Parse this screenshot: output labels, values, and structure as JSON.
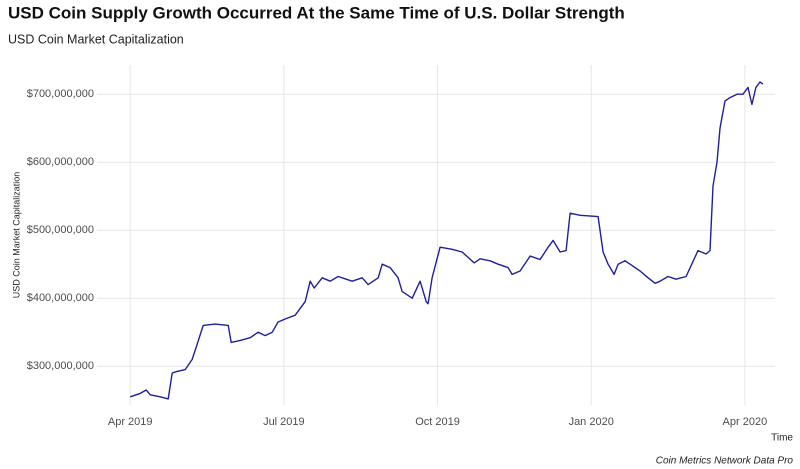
{
  "chart_data": {
    "type": "line",
    "title": "USD Coin Supply Growth Occurred At the Same Time of U.S. Dollar Strength",
    "subtitle": "USD Coin Market Capitalization",
    "y_label": "USD Coin Market Capitalization",
    "x_label": "Time",
    "caption": "Coin Metrics Network Data Pro",
    "grid": true,
    "xlim": [
      2019.196,
      2020.299
    ],
    "xticks": [
      {
        "value": 2019.25,
        "label": "Apr 2019"
      },
      {
        "value": 2019.5,
        "label": "Jul 2019"
      },
      {
        "value": 2019.75,
        "label": "Oct 2019"
      },
      {
        "value": 2020.0,
        "label": "Jan 2020"
      },
      {
        "value": 2020.25,
        "label": "Apr 2020"
      }
    ],
    "ylim": [
      243000000,
      743000000
    ],
    "yticks": [
      {
        "value": 300000000,
        "label": "$300,000,000"
      },
      {
        "value": 400000000,
        "label": "$400,000,000"
      },
      {
        "value": 500000000,
        "label": "$500,000,000"
      },
      {
        "value": 600000000,
        "label": "$600,000,000"
      },
      {
        "value": 700000000,
        "label": "$700,000,000"
      }
    ],
    "x": [
      2019.25,
      2019.2663,
      2019.276,
      2019.2825,
      2019.2988,
      2019.3118,
      2019.3183,
      2019.3248,
      2019.3395,
      2019.3508,
      2019.3574,
      2019.3687,
      2019.3883,
      2019.4094,
      2019.4143,
      2019.4289,
      2019.4452,
      2019.4582,
      2019.4696,
      2019.481,
      2019.4907,
      2019.5037,
      2019.5184,
      2019.5347,
      2019.5428,
      2019.5493,
      2019.5623,
      2019.5753,
      2019.5884,
      2019.6014,
      2019.6111,
      2019.6274,
      2019.6371,
      2019.6534,
      2019.6599,
      2019.6729,
      2019.6859,
      2019.6924,
      2019.7087,
      2019.7217,
      2019.7315,
      2019.7347,
      2019.7412,
      2019.7542,
      2019.7737,
      2019.79,
      2019.7998,
      2019.8095,
      2019.8193,
      2019.8355,
      2019.8486,
      2019.8648,
      2019.8713,
      2019.8843,
      2019.9006,
      2019.9169,
      2019.9299,
      2019.938,
      2019.9494,
      2019.9592,
      2019.9657,
      2019.9819,
      2020.0112,
      2020.0193,
      2020.0275,
      2020.0372,
      2020.0437,
      2020.0551,
      2020.0665,
      2020.0795,
      2020.0925,
      2020.1039,
      2020.112,
      2020.125,
      2020.138,
      2020.1543,
      2020.1738,
      2020.1868,
      2020.1933,
      2020.1982,
      2020.2047,
      2020.2096,
      2020.2177,
      2020.2258,
      2020.2372,
      2020.2469,
      2020.255,
      2020.2615,
      2020.268,
      2020.2745,
      2020.2793
    ],
    "series": [
      {
        "name": "USD Coin Market Capitalization",
        "color": "#1f1f9e",
        "values": [
          255000000,
          260000000,
          265000000,
          258000000,
          255000000,
          252000000,
          290000000,
          292000000,
          295000000,
          310000000,
          328000000,
          360000000,
          362000000,
          360000000,
          335000000,
          338000000,
          342000000,
          350000000,
          345000000,
          350000000,
          365000000,
          370000000,
          375000000,
          395000000,
          425000000,
          415000000,
          430000000,
          425000000,
          432000000,
          428000000,
          425000000,
          430000000,
          420000000,
          430000000,
          450000000,
          445000000,
          430000000,
          410000000,
          400000000,
          425000000,
          395000000,
          392000000,
          430000000,
          475000000,
          472000000,
          468000000,
          460000000,
          452000000,
          458000000,
          455000000,
          450000000,
          445000000,
          435000000,
          440000000,
          462000000,
          457000000,
          475000000,
          485000000,
          468000000,
          470000000,
          525000000,
          522000000,
          520000000,
          468000000,
          450000000,
          435000000,
          450000000,
          455000000,
          448000000,
          440000000,
          430000000,
          422000000,
          425000000,
          432000000,
          428000000,
          432000000,
          470000000,
          465000000,
          470000000,
          565000000,
          600000000,
          650000000,
          690000000,
          695000000,
          700000000,
          700000000,
          710000000,
          685000000,
          710000000,
          718000000,
          715000000
        ]
      }
    ]
  }
}
